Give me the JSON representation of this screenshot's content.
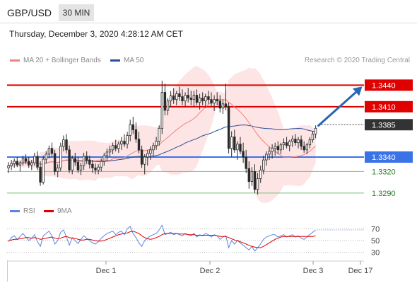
{
  "header": {
    "symbol": "GBP/USD",
    "timeframe": "30 MIN"
  },
  "timestamp": "Thursday, December 3, 2020 4:28:12 AM CET",
  "legend": {
    "ma20": "MA 20 + Bollinger Bands",
    "ma50": "MA 50",
    "rsi": "RSI",
    "ma9": "9MA"
  },
  "credit": "Research © 2020 Trading Central",
  "colors": {
    "ma20": "#f0807a",
    "ma50": "#2a4e96",
    "band_fill": "#fde0e0",
    "resistance": "#e00000",
    "support": "#3a73e8",
    "support_green": "#7abf7a",
    "arrow": "#2a66b4",
    "rsi": "#5b86e0",
    "ma9": "#e00000"
  },
  "chart_data": {
    "type": "candlestick",
    "ylim": [
      1.328,
      1.346
    ],
    "x_labels": [
      "Dec 1",
      "Dec 2",
      "Dec 3",
      "Dec 17"
    ],
    "candles": [
      [
        1.3325,
        1.3333,
        1.3318,
        1.3328
      ],
      [
        1.3328,
        1.3336,
        1.3322,
        1.3331
      ],
      [
        1.3331,
        1.3338,
        1.3325,
        1.3334
      ],
      [
        1.3334,
        1.334,
        1.3326,
        1.3329
      ],
      [
        1.3329,
        1.3335,
        1.332,
        1.3332
      ],
      [
        1.3332,
        1.3342,
        1.3328,
        1.3338
      ],
      [
        1.3338,
        1.3344,
        1.333,
        1.3334
      ],
      [
        1.3334,
        1.334,
        1.3325,
        1.3329
      ],
      [
        1.3329,
        1.3336,
        1.3322,
        1.3332
      ],
      [
        1.3332,
        1.3346,
        1.3328,
        1.3341
      ],
      [
        1.3341,
        1.3348,
        1.3322,
        1.3326
      ],
      [
        1.3326,
        1.3334,
        1.33,
        1.3305
      ],
      [
        1.3305,
        1.3342,
        1.3302,
        1.3337
      ],
      [
        1.3337,
        1.3348,
        1.3331,
        1.3344
      ],
      [
        1.3344,
        1.3356,
        1.3338,
        1.3352
      ],
      [
        1.3352,
        1.336,
        1.334,
        1.3345
      ],
      [
        1.3345,
        1.335,
        1.3315,
        1.332
      ],
      [
        1.332,
        1.333,
        1.3312,
        1.3325
      ],
      [
        1.3325,
        1.336,
        1.332,
        1.3355
      ],
      [
        1.3355,
        1.337,
        1.3348,
        1.3364
      ],
      [
        1.3364,
        1.3372,
        1.3345,
        1.335
      ],
      [
        1.335,
        1.3356,
        1.3318,
        1.3322
      ],
      [
        1.3322,
        1.3342,
        1.3316,
        1.3338
      ],
      [
        1.3338,
        1.3346,
        1.3328,
        1.3333
      ],
      [
        1.3333,
        1.334,
        1.3318,
        1.3322
      ],
      [
        1.3322,
        1.3332,
        1.3315,
        1.3328
      ],
      [
        1.3328,
        1.3346,
        1.3322,
        1.3341
      ],
      [
        1.3341,
        1.3348,
        1.333,
        1.3336
      ],
      [
        1.3336,
        1.3342,
        1.3324,
        1.333
      ],
      [
        1.333,
        1.3336,
        1.3318,
        1.3325
      ],
      [
        1.3325,
        1.3331,
        1.3316,
        1.3322
      ],
      [
        1.3322,
        1.333,
        1.3316,
        1.3326
      ],
      [
        1.3326,
        1.3338,
        1.332,
        1.3334
      ],
      [
        1.3334,
        1.3346,
        1.3328,
        1.3342
      ],
      [
        1.3342,
        1.3352,
        1.3335,
        1.3347
      ],
      [
        1.3347,
        1.3356,
        1.334,
        1.335
      ],
      [
        1.335,
        1.336,
        1.3344,
        1.3356
      ],
      [
        1.3356,
        1.3364,
        1.3348,
        1.3352
      ],
      [
        1.3352,
        1.3362,
        1.3346,
        1.3358
      ],
      [
        1.3358,
        1.3368,
        1.335,
        1.3362
      ],
      [
        1.3362,
        1.3372,
        1.3354,
        1.3358
      ],
      [
        1.3358,
        1.3375,
        1.3352,
        1.337
      ],
      [
        1.337,
        1.3392,
        1.3362,
        1.3385
      ],
      [
        1.3385,
        1.3396,
        1.3372,
        1.3378
      ],
      [
        1.3378,
        1.3388,
        1.336,
        1.3365
      ],
      [
        1.3365,
        1.3375,
        1.3345,
        1.335
      ],
      [
        1.335,
        1.3356,
        1.3325,
        1.333
      ],
      [
        1.333,
        1.3344,
        1.3316,
        1.334
      ],
      [
        1.334,
        1.335,
        1.3328,
        1.3345
      ],
      [
        1.3345,
        1.3355,
        1.3336,
        1.335
      ],
      [
        1.335,
        1.336,
        1.3342,
        1.3356
      ],
      [
        1.3356,
        1.3368,
        1.335,
        1.3362
      ],
      [
        1.3362,
        1.3384,
        1.3356,
        1.338
      ],
      [
        1.338,
        1.3446,
        1.3372,
        1.343
      ],
      [
        1.343,
        1.3442,
        1.3398,
        1.3405
      ],
      [
        1.3405,
        1.3422,
        1.3398,
        1.3418
      ],
      [
        1.3418,
        1.3432,
        1.341,
        1.3425
      ],
      [
        1.3425,
        1.3436,
        1.3414,
        1.342
      ],
      [
        1.342,
        1.3432,
        1.3412,
        1.3428
      ],
      [
        1.3428,
        1.3438,
        1.3418,
        1.3424
      ],
      [
        1.3424,
        1.3434,
        1.3412,
        1.3418
      ],
      [
        1.3418,
        1.343,
        1.341,
        1.3426
      ],
      [
        1.3426,
        1.3436,
        1.3416,
        1.3422
      ],
      [
        1.3422,
        1.3432,
        1.3412,
        1.342
      ],
      [
        1.342,
        1.3432,
        1.341,
        1.3426
      ],
      [
        1.3426,
        1.3434,
        1.3412,
        1.3416
      ],
      [
        1.3416,
        1.3428,
        1.3406,
        1.3422
      ],
      [
        1.3422,
        1.343,
        1.3412,
        1.3418
      ],
      [
        1.3418,
        1.3428,
        1.3408,
        1.3424
      ],
      [
        1.3424,
        1.3432,
        1.3414,
        1.342
      ],
      [
        1.342,
        1.343,
        1.341,
        1.3415
      ],
      [
        1.3415,
        1.3426,
        1.3404,
        1.342
      ],
      [
        1.342,
        1.343,
        1.3412,
        1.3418
      ],
      [
        1.3418,
        1.3426,
        1.3402,
        1.3408
      ],
      [
        1.3408,
        1.342,
        1.34,
        1.3414
      ],
      [
        1.3414,
        1.3442,
        1.3405,
        1.341
      ],
      [
        1.341,
        1.3416,
        1.3345,
        1.3352
      ],
      [
        1.3352,
        1.3376,
        1.334,
        1.3368
      ],
      [
        1.3368,
        1.3378,
        1.3346,
        1.335
      ],
      [
        1.335,
        1.3362,
        1.3336,
        1.3358
      ],
      [
        1.3358,
        1.3368,
        1.3344,
        1.3348
      ],
      [
        1.3348,
        1.336,
        1.3332,
        1.334
      ],
      [
        1.334,
        1.335,
        1.3318,
        1.3324
      ],
      [
        1.3324,
        1.3334,
        1.3296,
        1.3306
      ],
      [
        1.3306,
        1.3326,
        1.33,
        1.332
      ],
      [
        1.332,
        1.333,
        1.329,
        1.3295
      ],
      [
        1.3295,
        1.3318,
        1.3288,
        1.331
      ],
      [
        1.331,
        1.3328,
        1.3304,
        1.3322
      ],
      [
        1.3322,
        1.3342,
        1.3316,
        1.3336
      ],
      [
        1.3336,
        1.3348,
        1.3328,
        1.3344
      ],
      [
        1.3344,
        1.3354,
        1.3336,
        1.3348
      ],
      [
        1.3348,
        1.3358,
        1.3338,
        1.3352
      ],
      [
        1.3352,
        1.336,
        1.3342,
        1.3355
      ],
      [
        1.3355,
        1.3362,
        1.3344,
        1.335
      ],
      [
        1.335,
        1.336,
        1.3344,
        1.3357
      ],
      [
        1.3357,
        1.3366,
        1.335,
        1.336
      ],
      [
        1.336,
        1.3368,
        1.3352,
        1.3356
      ],
      [
        1.3356,
        1.3364,
        1.3348,
        1.3362
      ],
      [
        1.3362,
        1.337,
        1.3354,
        1.3365
      ],
      [
        1.3365,
        1.3372,
        1.3356,
        1.336
      ],
      [
        1.336,
        1.3368,
        1.3352,
        1.3364
      ],
      [
        1.3364,
        1.337,
        1.335,
        1.3355
      ],
      [
        1.3355,
        1.3362,
        1.3346,
        1.335
      ],
      [
        1.335,
        1.336,
        1.3344,
        1.3357
      ],
      [
        1.3357,
        1.3368,
        1.3352,
        1.3364
      ],
      [
        1.3364,
        1.3376,
        1.336,
        1.3372
      ],
      [
        1.3372,
        1.3384,
        1.3366,
        1.338
      ]
    ],
    "levels": [
      {
        "value": 1.344,
        "label": "1.3440",
        "style": "resistance"
      },
      {
        "value": 1.341,
        "label": "1.3410",
        "style": "resistance"
      },
      {
        "value": 1.3385,
        "label": "1.3385",
        "style": "current"
      },
      {
        "value": 1.334,
        "label": "1.3340",
        "style": "support"
      },
      {
        "value": 1.332,
        "label": "1.3320",
        "style": "support_green"
      },
      {
        "value": 1.329,
        "label": "1.3290",
        "style": "support_green"
      }
    ],
    "rsi": {
      "levels": [
        70,
        50,
        30
      ],
      "ylim": [
        20,
        80
      ],
      "values": [
        48,
        55,
        58,
        52,
        57,
        62,
        56,
        50,
        54,
        60,
        48,
        40,
        58,
        62,
        66,
        58,
        44,
        50,
        64,
        68,
        56,
        42,
        55,
        50,
        45,
        52,
        58,
        54,
        50,
        46,
        44,
        48,
        54,
        58,
        62,
        64,
        66,
        60,
        64,
        66,
        60,
        70,
        74,
        62,
        55,
        46,
        40,
        50,
        54,
        58,
        60,
        62,
        68,
        76,
        60,
        62,
        64,
        60,
        62,
        60,
        58,
        62,
        60,
        58,
        62,
        56,
        60,
        58,
        62,
        60,
        56,
        60,
        58,
        52,
        56,
        58,
        38,
        50,
        44,
        50,
        46,
        42,
        38,
        34,
        40,
        32,
        38,
        44,
        52,
        56,
        58,
        60,
        60,
        56,
        58,
        60,
        56,
        58,
        60,
        56,
        58,
        54,
        52,
        56,
        60,
        64,
        68
      ],
      "ma9": [
        50,
        51,
        52,
        52,
        53,
        54,
        55,
        55,
        54,
        55,
        54,
        52,
        53,
        54,
        55,
        56,
        54,
        53,
        54,
        56,
        57,
        55,
        54,
        54,
        52,
        51,
        51,
        52,
        52,
        51,
        50,
        49,
        49,
        50,
        52,
        54,
        56,
        58,
        60,
        61,
        62,
        63,
        65,
        66,
        64,
        62,
        58,
        55,
        53,
        52,
        53,
        55,
        57,
        60,
        62,
        62,
        62,
        62,
        62,
        61,
        61,
        61,
        60,
        60,
        60,
        59,
        59,
        59,
        59,
        59,
        59,
        59,
        58,
        57,
        57,
        57,
        55,
        53,
        51,
        50,
        48,
        46,
        44,
        42,
        40,
        39,
        38,
        38,
        40,
        43,
        46,
        49,
        52,
        54,
        56,
        57,
        57,
        57,
        57,
        57,
        57,
        57,
        57,
        57,
        57,
        57,
        58
      ]
    }
  }
}
